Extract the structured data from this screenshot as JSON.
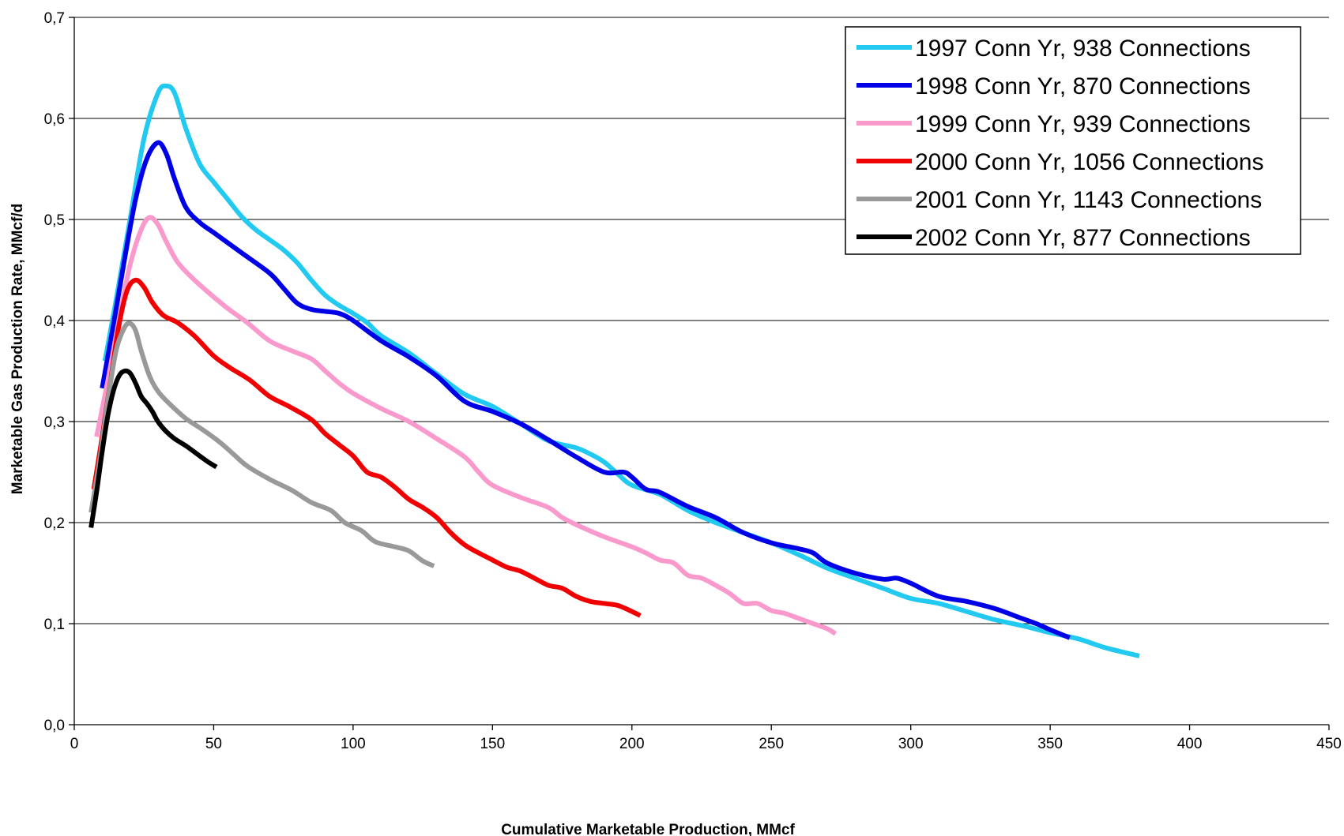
{
  "chart_data": {
    "type": "line",
    "title": "",
    "xlabel": "Cumulative Marketable Production, MMcf",
    "ylabel": "Marketable Gas Production Rate, MMcf/d",
    "xlim": [
      0,
      450
    ],
    "ylim": [
      0,
      0.7
    ],
    "x_ticks": [
      0,
      50,
      100,
      150,
      200,
      250,
      300,
      350,
      400,
      450
    ],
    "x_tick_labels": [
      "0",
      "50",
      "100",
      "150",
      "200",
      "250",
      "300",
      "350",
      "400",
      "450"
    ],
    "y_ticks": [
      0,
      0.1,
      0.2,
      0.3,
      0.4,
      0.5,
      0.6,
      0.7
    ],
    "y_tick_labels": [
      "0,0",
      "0,1",
      "0,2",
      "0,3",
      "0,4",
      "0,5",
      "0,6",
      "0,7"
    ],
    "grid": "horizontal",
    "legend_position": "top-right",
    "series": [
      {
        "name": "1997 Conn Yr, 938 Connections",
        "color": "#22c9f0",
        "x": [
          11,
          15,
          20,
          25,
          30,
          33,
          36,
          40,
          45,
          50,
          55,
          60,
          65,
          70,
          75,
          80,
          85,
          90,
          95,
          100,
          105,
          110,
          120,
          130,
          140,
          150,
          160,
          170,
          180,
          185,
          190,
          195,
          200,
          210,
          220,
          230,
          240,
          250,
          260,
          270,
          280,
          290,
          300,
          310,
          320,
          330,
          340,
          350,
          360,
          370,
          382
        ],
        "y": [
          0.36,
          0.42,
          0.5,
          0.58,
          0.625,
          0.632,
          0.625,
          0.59,
          0.555,
          0.537,
          0.52,
          0.503,
          0.49,
          0.48,
          0.47,
          0.457,
          0.44,
          0.425,
          0.415,
          0.407,
          0.398,
          0.385,
          0.368,
          0.347,
          0.327,
          0.315,
          0.298,
          0.281,
          0.274,
          0.268,
          0.26,
          0.248,
          0.237,
          0.228,
          0.212,
          0.2,
          0.19,
          0.18,
          0.168,
          0.155,
          0.145,
          0.135,
          0.125,
          0.12,
          0.112,
          0.104,
          0.098,
          0.091,
          0.085,
          0.076,
          0.068
        ]
      },
      {
        "name": "1998 Conn Yr, 870 Connections",
        "color": "#0000e6",
        "x": [
          10,
          14,
          18,
          22,
          26,
          30,
          33,
          36,
          40,
          45,
          50,
          60,
          70,
          75,
          80,
          85,
          90,
          95,
          100,
          110,
          120,
          130,
          140,
          150,
          160,
          170,
          180,
          190,
          197,
          200,
          205,
          210,
          220,
          230,
          240,
          250,
          260,
          265,
          270,
          280,
          290,
          295,
          300,
          310,
          320,
          330,
          340,
          345,
          350,
          357
        ],
        "y": [
          0.333,
          0.395,
          0.46,
          0.52,
          0.56,
          0.576,
          0.565,
          0.54,
          0.512,
          0.497,
          0.487,
          0.467,
          0.447,
          0.432,
          0.417,
          0.411,
          0.409,
          0.407,
          0.4,
          0.38,
          0.364,
          0.345,
          0.32,
          0.31,
          0.298,
          0.282,
          0.265,
          0.25,
          0.25,
          0.245,
          0.233,
          0.23,
          0.216,
          0.205,
          0.19,
          0.18,
          0.174,
          0.17,
          0.16,
          0.15,
          0.144,
          0.145,
          0.14,
          0.127,
          0.122,
          0.115,
          0.105,
          0.1,
          0.094,
          0.086
        ]
      },
      {
        "name": "1999 Conn Yr, 939 Connections",
        "color": "#f999cc",
        "x": [
          8,
          12,
          16,
          20,
          24,
          27,
          30,
          33,
          37,
          42,
          48,
          55,
          62,
          70,
          78,
          85,
          90,
          95,
          100,
          110,
          120,
          130,
          140,
          145,
          150,
          160,
          170,
          175,
          180,
          190,
          200,
          205,
          210,
          215,
          220,
          225,
          230,
          235,
          240,
          245,
          250,
          255,
          260,
          265,
          270,
          273
        ],
        "y": [
          0.285,
          0.34,
          0.4,
          0.455,
          0.49,
          0.502,
          0.495,
          0.478,
          0.458,
          0.443,
          0.428,
          0.412,
          0.398,
          0.38,
          0.37,
          0.362,
          0.35,
          0.338,
          0.328,
          0.313,
          0.3,
          0.283,
          0.265,
          0.25,
          0.237,
          0.225,
          0.215,
          0.205,
          0.198,
          0.186,
          0.176,
          0.17,
          0.163,
          0.16,
          0.148,
          0.145,
          0.138,
          0.13,
          0.12,
          0.12,
          0.113,
          0.11,
          0.105,
          0.1,
          0.095,
          0.09
        ]
      },
      {
        "name": "2000 Conn Yr, 1056 Connections",
        "color": "#f00000",
        "x": [
          7,
          10,
          13,
          16,
          19,
          22,
          25,
          28,
          32,
          37,
          43,
          50,
          56,
          63,
          70,
          77,
          85,
          90,
          95,
          100,
          105,
          110,
          115,
          120,
          125,
          130,
          135,
          140,
          145,
          150,
          155,
          160,
          165,
          170,
          175,
          180,
          185,
          190,
          195,
          200,
          203
        ],
        "y": [
          0.233,
          0.285,
          0.34,
          0.395,
          0.43,
          0.44,
          0.433,
          0.418,
          0.405,
          0.398,
          0.385,
          0.365,
          0.353,
          0.341,
          0.325,
          0.315,
          0.302,
          0.288,
          0.277,
          0.266,
          0.25,
          0.245,
          0.235,
          0.223,
          0.215,
          0.205,
          0.19,
          0.178,
          0.17,
          0.163,
          0.156,
          0.152,
          0.145,
          0.138,
          0.135,
          0.127,
          0.122,
          0.12,
          0.118,
          0.112,
          0.108
        ]
      },
      {
        "name": "2001 Conn Yr, 1143 Connections",
        "color": "#999999",
        "x": [
          6,
          9,
          12,
          15,
          18,
          20,
          22,
          24,
          27,
          30,
          34,
          40,
          46,
          52,
          57,
          62,
          70,
          78,
          85,
          92,
          97,
          103,
          108,
          115,
          120,
          125,
          129
        ],
        "y": [
          0.21,
          0.26,
          0.32,
          0.37,
          0.393,
          0.397,
          0.39,
          0.37,
          0.345,
          0.33,
          0.318,
          0.303,
          0.292,
          0.28,
          0.268,
          0.256,
          0.243,
          0.232,
          0.22,
          0.212,
          0.2,
          0.192,
          0.181,
          0.176,
          0.172,
          0.162,
          0.157
        ]
      },
      {
        "name": "2002 Conn Yr, 877 Connections",
        "color": "#000000",
        "x": [
          6,
          8,
          10,
          12,
          14,
          16,
          18,
          20,
          22,
          24,
          26,
          28,
          30,
          33,
          36,
          40,
          44,
          48,
          51
        ],
        "y": [
          0.195,
          0.23,
          0.27,
          0.305,
          0.33,
          0.345,
          0.35,
          0.348,
          0.338,
          0.325,
          0.318,
          0.31,
          0.3,
          0.29,
          0.283,
          0.276,
          0.268,
          0.26,
          0.255
        ]
      }
    ]
  }
}
